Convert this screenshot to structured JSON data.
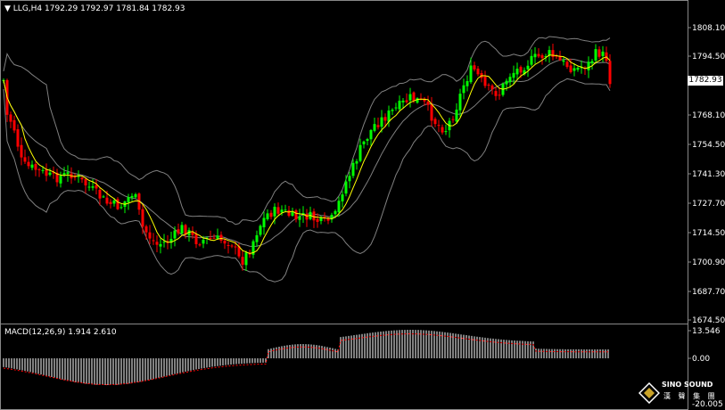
{
  "header": {
    "symbol": "LLG,H4",
    "ohlc": "1792.29 1792.97 1781.84 1782.93"
  },
  "price_axis": {
    "ticks": [
      "1808.10",
      "1794.50",
      "1782.93",
      "1768.10",
      "1754.50",
      "1741.30",
      "1727.70",
      "1714.50",
      "1700.90",
      "1687.70",
      "1674.50"
    ],
    "current_price": "1782.93"
  },
  "macd_panel": {
    "title": "MACD(12,26,9) 1.914 2.610",
    "ticks": [
      "13.546",
      "0.00",
      "-20.005"
    ]
  },
  "logo": {
    "brand": "SINO SOUND",
    "cn": "漢 聲 集 團"
  },
  "colors": {
    "bull": "#00ff00",
    "bear": "#ff0000",
    "ma": "#ffff00",
    "bands": "#808080",
    "signal": "#ff0000"
  }
}
